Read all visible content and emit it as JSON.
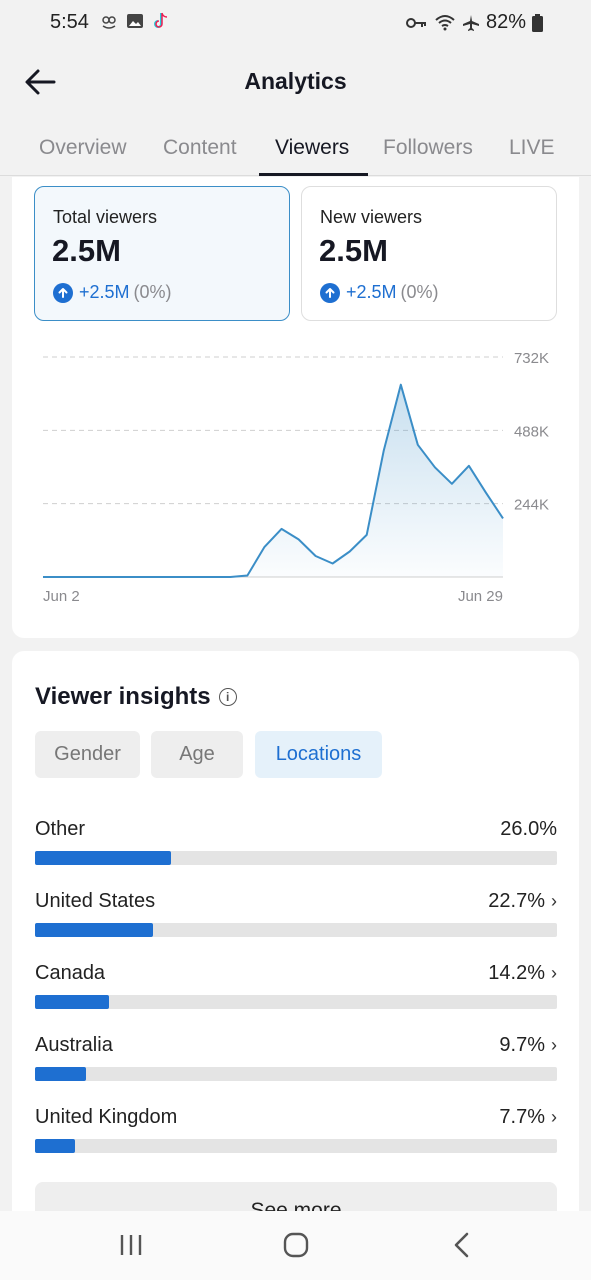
{
  "status_bar": {
    "time": "5:54",
    "battery": "82%",
    "icons": [
      "owl-icon",
      "gallery-icon",
      "tiktok-icon",
      "key-icon",
      "wifi-icon",
      "airplane-icon",
      "battery-icon"
    ]
  },
  "header": {
    "title": "Analytics",
    "back_icon": "back-arrow-icon"
  },
  "tabs": [
    {
      "label": "Overview",
      "active": false
    },
    {
      "label": "Content",
      "active": false
    },
    {
      "label": "Viewers",
      "active": true
    },
    {
      "label": "Followers",
      "active": false
    },
    {
      "label": "LIVE",
      "active": false
    }
  ],
  "metrics": [
    {
      "label": "Total viewers",
      "value": "2.5M",
      "delta": "+2.5M",
      "pct": "(0%)",
      "selected": true
    },
    {
      "label": "New viewers",
      "value": "2.5M",
      "delta": "+2.5M",
      "pct": "(0%)",
      "selected": false
    }
  ],
  "chart_data": {
    "type": "area",
    "x_start_label": "Jun 2",
    "x_end_label": "Jun 29",
    "y_ticks": [
      "244K",
      "488K",
      "732K"
    ],
    "ylim": [
      0,
      732000
    ],
    "grid": true,
    "x": [
      "Jun 2",
      "Jun 3",
      "Jun 4",
      "Jun 5",
      "Jun 6",
      "Jun 7",
      "Jun 8",
      "Jun 9",
      "Jun 10",
      "Jun 11",
      "Jun 12",
      "Jun 13",
      "Jun 14",
      "Jun 15",
      "Jun 16",
      "Jun 17",
      "Jun 18",
      "Jun 19",
      "Jun 20",
      "Jun 21",
      "Jun 22",
      "Jun 23",
      "Jun 24",
      "Jun 25",
      "Jun 26",
      "Jun 27",
      "Jun 28",
      "Jun 29"
    ],
    "values": [
      0,
      0,
      0,
      0,
      0,
      0,
      0,
      0,
      0,
      0,
      0,
      0,
      5000,
      100000,
      160000,
      125000,
      70000,
      45000,
      85000,
      140000,
      420000,
      640000,
      440000,
      365000,
      310000,
      370000,
      280000,
      195000
    ],
    "color": "#3b8ec7"
  },
  "insights": {
    "title": "Viewer insights",
    "chips": [
      {
        "label": "Gender",
        "active": false
      },
      {
        "label": "Age",
        "active": false
      },
      {
        "label": "Locations",
        "active": true
      }
    ],
    "locations": [
      {
        "name": "Other",
        "pct_label": "26.0%",
        "value": 26.0,
        "chevron": ""
      },
      {
        "name": "United States",
        "pct_label": "22.7%",
        "value": 22.7,
        "chevron": "›"
      },
      {
        "name": "Canada",
        "pct_label": "14.2%",
        "value": 14.2,
        "chevron": "›"
      },
      {
        "name": "Australia",
        "pct_label": "9.7%",
        "value": 9.7,
        "chevron": "›"
      },
      {
        "name": "United Kingdom",
        "pct_label": "7.7%",
        "value": 7.7,
        "chevron": "›"
      }
    ],
    "see_more": "See more",
    "bar_color": "#1e6fd1"
  },
  "nav": {
    "recents_icon": "recents-icon",
    "home_icon": "home-icon",
    "back_icon": "nav-back-icon"
  }
}
